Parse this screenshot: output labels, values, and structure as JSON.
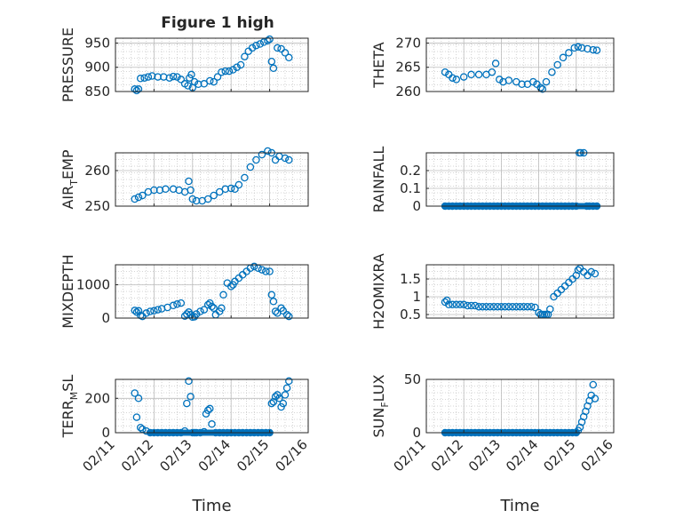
{
  "figure": {
    "title": "Figure 1 high",
    "marker_color": "#0072BD"
  },
  "chart_data": [
    {
      "id": "pressure",
      "type": "scatter",
      "ylabel": "PRESSURE",
      "ylim": [
        850,
        960
      ],
      "yticks": [
        850,
        900,
        950
      ],
      "xlim": [
        11,
        16
      ],
      "xticks": [
        "02/11",
        "02/12",
        "02/13",
        "02/14",
        "02/15",
        "02/16"
      ],
      "xlabel": "",
      "grid": true,
      "x": [
        11.5,
        11.55,
        11.6,
        11.65,
        11.75,
        11.85,
        11.95,
        12.1,
        12.25,
        12.4,
        12.5,
        12.6,
        12.7,
        12.8,
        12.88,
        12.92,
        12.97,
        13.0,
        13.05,
        13.15,
        13.3,
        13.45,
        13.55,
        13.65,
        13.75,
        13.85,
        13.95,
        14.05,
        14.15,
        14.25,
        14.35,
        14.45,
        14.55,
        14.65,
        14.75,
        14.85,
        14.95,
        15.0,
        15.05,
        15.1,
        15.2,
        15.3,
        15.4,
        15.5
      ],
      "y": [
        855,
        852,
        855,
        877,
        878,
        880,
        882,
        880,
        880,
        878,
        881,
        880,
        875,
        866,
        862,
        878,
        885,
        858,
        870,
        865,
        866,
        872,
        870,
        880,
        890,
        892,
        892,
        895,
        900,
        905,
        922,
        933,
        940,
        945,
        948,
        952,
        955,
        958,
        912,
        898,
        940,
        938,
        930,
        920
      ]
    },
    {
      "id": "theta",
      "type": "scatter",
      "ylabel": "THETA",
      "ylim": [
        260,
        271
      ],
      "yticks": [
        260,
        265,
        270
      ],
      "xlim": [
        11,
        16
      ],
      "xticks": [
        "02/11",
        "02/12",
        "02/13",
        "02/14",
        "02/15",
        "02/16"
      ],
      "xlabel": "",
      "grid": true,
      "x": [
        11.5,
        11.6,
        11.7,
        11.8,
        12.0,
        12.2,
        12.4,
        12.6,
        12.75,
        12.85,
        12.95,
        13.05,
        13.2,
        13.4,
        13.55,
        13.7,
        13.85,
        13.95,
        14.05,
        14.1,
        14.2,
        14.35,
        14.5,
        14.65,
        14.8,
        14.95,
        15.05,
        15.15,
        15.3,
        15.45,
        15.55
      ],
      "y": [
        264,
        263.5,
        262.8,
        262.5,
        263,
        263.5,
        263.5,
        263.5,
        264,
        265.8,
        262.5,
        262,
        262.3,
        262,
        261.5,
        261.5,
        262,
        261.5,
        260.8,
        260.5,
        262,
        264,
        265.5,
        267,
        268,
        269,
        269.2,
        269,
        268.8,
        268.6,
        268.5
      ]
    },
    {
      "id": "air_temp",
      "type": "scatter",
      "ylabel": "AIR",
      "ylabel_sub": "T",
      "ylabel_suffix": "EMP",
      "ylim": [
        250,
        265
      ],
      "yticks": [
        250,
        260
      ],
      "xlim": [
        11,
        16
      ],
      "xticks": [
        "02/11",
        "02/12",
        "02/13",
        "02/14",
        "02/15",
        "02/16"
      ],
      "xlabel": "",
      "grid": true,
      "x": [
        11.5,
        11.6,
        11.7,
        11.85,
        12.0,
        12.15,
        12.3,
        12.5,
        12.65,
        12.8,
        12.9,
        12.95,
        13.0,
        13.1,
        13.25,
        13.4,
        13.55,
        13.7,
        13.85,
        14.0,
        14.1,
        14.2,
        14.35,
        14.5,
        14.65,
        14.8,
        14.95,
        15.05,
        15.15,
        15.25,
        15.4,
        15.5
      ],
      "y": [
        252,
        252.5,
        253,
        254,
        254.5,
        254.5,
        254.8,
        254.8,
        254.5,
        254,
        257,
        254.5,
        252,
        251.5,
        251.5,
        252,
        253,
        254,
        254.8,
        255,
        254.8,
        256,
        258,
        261,
        263,
        264.5,
        265.5,
        265,
        263,
        264,
        263.5,
        263
      ]
    },
    {
      "id": "rainfall",
      "type": "scatter",
      "ylabel": "RAINFALL",
      "ylim": [
        0,
        0.3
      ],
      "yticks": [
        0,
        0.1,
        0.2
      ],
      "xlim": [
        11,
        16
      ],
      "xticks": [
        "02/11",
        "02/12",
        "02/13",
        "02/14",
        "02/15",
        "02/16"
      ],
      "xlabel": "",
      "grid": true,
      "x": [
        11.5,
        11.6,
        11.7,
        11.8,
        11.9,
        12.0,
        12.1,
        12.2,
        12.3,
        12.4,
        12.5,
        12.6,
        12.7,
        12.8,
        12.9,
        13.0,
        13.1,
        13.2,
        13.3,
        13.4,
        13.5,
        13.6,
        13.7,
        13.8,
        13.9,
        14.0,
        14.1,
        14.2,
        14.3,
        14.4,
        14.5,
        14.6,
        14.7,
        14.8,
        14.9,
        15.0,
        15.08,
        15.12,
        15.2,
        15.28,
        15.35,
        15.45,
        15.55
      ],
      "y": [
        0,
        0,
        0,
        0,
        0,
        0,
        0,
        0,
        0,
        0,
        0,
        0,
        0,
        0,
        0,
        0,
        0,
        0,
        0,
        0,
        0,
        0,
        0,
        0,
        0,
        0,
        0,
        0,
        0,
        0,
        0,
        0,
        0,
        0,
        0,
        0,
        0.3,
        0.3,
        0.3,
        0,
        0,
        0,
        0
      ]
    },
    {
      "id": "mixdepth",
      "type": "scatter",
      "ylabel": "MIXDEPTH",
      "ylim": [
        0,
        1600
      ],
      "yticks": [
        0,
        1000
      ],
      "xlim": [
        11,
        16
      ],
      "xticks": [
        "02/11",
        "02/12",
        "02/13",
        "02/14",
        "02/15",
        "02/16"
      ],
      "xlabel": "",
      "grid": true,
      "x": [
        11.5,
        11.55,
        11.6,
        11.65,
        11.7,
        11.8,
        11.9,
        12.0,
        12.1,
        12.2,
        12.35,
        12.5,
        12.6,
        12.7,
        12.8,
        12.85,
        12.9,
        12.95,
        13.0,
        13.05,
        13.1,
        13.2,
        13.3,
        13.4,
        13.45,
        13.5,
        13.55,
        13.6,
        13.7,
        13.75,
        13.8,
        13.9,
        14.0,
        14.05,
        14.1,
        14.2,
        14.3,
        14.4,
        14.5,
        14.6,
        14.7,
        14.8,
        14.9,
        15.0,
        15.05,
        15.1,
        15.15,
        15.2,
        15.3,
        15.35,
        15.45,
        15.5
      ],
      "y": [
        230,
        180,
        220,
        80,
        50,
        150,
        200,
        220,
        250,
        280,
        320,
        380,
        420,
        450,
        60,
        120,
        180,
        100,
        30,
        40,
        120,
        200,
        250,
        400,
        450,
        350,
        300,
        100,
        200,
        300,
        700,
        1050,
        950,
        1000,
        1100,
        1200,
        1300,
        1400,
        1500,
        1550,
        1500,
        1450,
        1400,
        1400,
        700,
        500,
        200,
        150,
        300,
        220,
        100,
        50
      ]
    },
    {
      "id": "h2omixra",
      "type": "scatter",
      "ylabel": "H2OMIXRA",
      "ylim": [
        0.4,
        1.9
      ],
      "yticks": [
        0.5,
        1,
        1.5
      ],
      "xlim": [
        11,
        16
      ],
      "xticks": [
        "02/11",
        "02/12",
        "02/13",
        "02/14",
        "02/15",
        "02/16"
      ],
      "xlabel": "",
      "grid": true,
      "x": [
        11.5,
        11.55,
        11.6,
        11.7,
        11.8,
        11.9,
        12.0,
        12.1,
        12.2,
        12.3,
        12.4,
        12.5,
        12.6,
        12.7,
        12.8,
        12.9,
        13.0,
        13.1,
        13.2,
        13.3,
        13.4,
        13.5,
        13.6,
        13.7,
        13.8,
        13.9,
        14.0,
        14.05,
        14.1,
        14.15,
        14.2,
        14.25,
        14.3,
        14.4,
        14.5,
        14.6,
        14.7,
        14.8,
        14.9,
        15.0,
        15.05,
        15.1,
        15.2,
        15.3,
        15.4,
        15.5
      ],
      "y": [
        0.85,
        0.9,
        0.78,
        0.78,
        0.78,
        0.78,
        0.78,
        0.75,
        0.75,
        0.75,
        0.72,
        0.72,
        0.72,
        0.72,
        0.72,
        0.72,
        0.72,
        0.72,
        0.72,
        0.72,
        0.72,
        0.72,
        0.72,
        0.72,
        0.72,
        0.7,
        0.55,
        0.5,
        0.5,
        0.5,
        0.5,
        0.5,
        0.65,
        1.0,
        1.1,
        1.2,
        1.3,
        1.4,
        1.5,
        1.6,
        1.75,
        1.8,
        1.7,
        1.6,
        1.7,
        1.65
      ]
    },
    {
      "id": "terr_msl",
      "type": "scatter",
      "ylabel": "TERR",
      "ylabel_sub": "M",
      "ylabel_suffix": "SL",
      "ylim": [
        0,
        310
      ],
      "yticks": [
        0,
        200
      ],
      "xlim": [
        11,
        16
      ],
      "xticks": [
        "02/11",
        "02/12",
        "02/13",
        "02/14",
        "02/15",
        "02/16"
      ],
      "xlabel": "Time",
      "grid": true,
      "x": [
        11.5,
        11.55,
        11.6,
        11.65,
        11.7,
        11.8,
        11.9,
        12.0,
        12.1,
        12.2,
        12.3,
        12.4,
        12.5,
        12.6,
        12.7,
        12.8,
        12.85,
        12.9,
        12.95,
        13.0,
        13.05,
        13.1,
        13.2,
        13.3,
        13.35,
        13.4,
        13.45,
        13.5,
        13.6,
        13.7,
        13.8,
        13.9,
        14.0,
        14.1,
        14.2,
        14.3,
        14.4,
        14.5,
        14.6,
        14.7,
        14.8,
        14.9,
        15.0,
        15.05,
        15.1,
        15.15,
        15.2,
        15.25,
        15.3,
        15.35,
        15.4,
        15.45,
        15.5
      ],
      "y": [
        230,
        90,
        200,
        30,
        20,
        10,
        0,
        0,
        0,
        0,
        0,
        0,
        0,
        0,
        0,
        10,
        170,
        300,
        210,
        0,
        0,
        0,
        0,
        5,
        110,
        130,
        140,
        50,
        0,
        0,
        0,
        0,
        0,
        0,
        0,
        0,
        0,
        0,
        0,
        0,
        0,
        0,
        0,
        170,
        180,
        210,
        220,
        200,
        150,
        170,
        220,
        260,
        300
      ]
    },
    {
      "id": "sun_flux",
      "type": "scatter",
      "ylabel": "SUN",
      "ylabel_sub": "F",
      "ylabel_suffix": "LUX",
      "ylim": [
        0,
        50
      ],
      "yticks": [
        0,
        50
      ],
      "xlim": [
        11,
        16
      ],
      "xticks": [
        "02/11",
        "02/12",
        "02/13",
        "02/14",
        "02/15",
        "02/16"
      ],
      "xlabel": "Time",
      "grid": true,
      "x": [
        11.5,
        11.6,
        11.7,
        11.8,
        11.9,
        12.0,
        12.1,
        12.2,
        12.3,
        12.4,
        12.5,
        12.6,
        12.7,
        12.8,
        12.9,
        13.0,
        13.1,
        13.2,
        13.3,
        13.4,
        13.5,
        13.6,
        13.7,
        13.8,
        13.9,
        14.0,
        14.1,
        14.2,
        14.3,
        14.4,
        14.5,
        14.6,
        14.7,
        14.8,
        14.9,
        15.0,
        15.05,
        15.1,
        15.15,
        15.2,
        15.25,
        15.3,
        15.35,
        15.4,
        15.45,
        15.5
      ],
      "y": [
        0,
        0,
        0,
        0,
        0,
        0,
        0,
        0,
        0,
        0,
        0,
        0,
        0,
        0,
        0,
        0,
        0,
        0,
        0,
        0,
        0,
        0,
        0,
        0,
        0,
        0,
        0,
        0,
        0,
        0,
        0,
        0,
        0,
        0,
        0,
        0,
        2,
        5,
        10,
        15,
        20,
        25,
        30,
        35,
        45,
        32
      ]
    }
  ]
}
